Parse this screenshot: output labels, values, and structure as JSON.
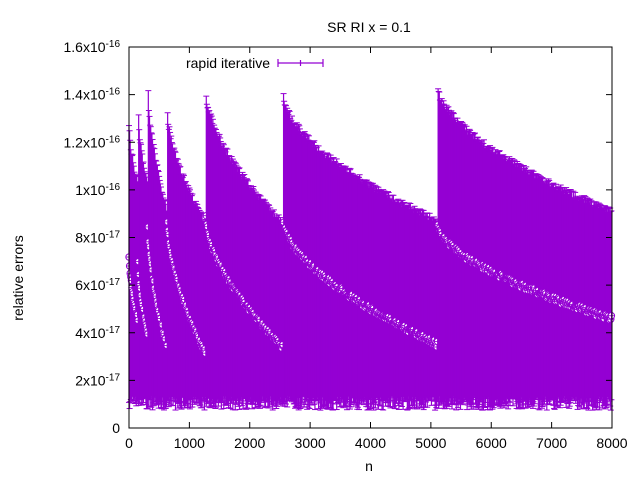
{
  "chart_data": {
    "type": "scatter",
    "title": "SR RI x = 0.1",
    "xlabel": "n",
    "ylabel": "relative errors",
    "xlim": [
      0,
      8000
    ],
    "ylim": [
      0,
      1.6e-16
    ],
    "grid": false,
    "legend_position": "top-left",
    "x_ticks": [
      {
        "value": 0,
        "label": "0"
      },
      {
        "value": 1000,
        "label": "1000"
      },
      {
        "value": 2000,
        "label": "2000"
      },
      {
        "value": 3000,
        "label": "3000"
      },
      {
        "value": 4000,
        "label": "4000"
      },
      {
        "value": 5000,
        "label": "5000"
      },
      {
        "value": 6000,
        "label": "6000"
      },
      {
        "value": 7000,
        "label": "7000"
      },
      {
        "value": 8000,
        "label": "8000"
      }
    ],
    "y_ticks": [
      {
        "value": 0,
        "mantissa": "0",
        "exponent": ""
      },
      {
        "value": 2e-17,
        "mantissa": "2x10",
        "exponent": "-17"
      },
      {
        "value": 4e-17,
        "mantissa": "4x10",
        "exponent": "-17"
      },
      {
        "value": 6e-17,
        "mantissa": "6x10",
        "exponent": "-17"
      },
      {
        "value": 8e-17,
        "mantissa": "8x10",
        "exponent": "-17"
      },
      {
        "value": 1e-16,
        "mantissa": "1x10",
        "exponent": "-16"
      },
      {
        "value": 1.2e-16,
        "mantissa": "1.2x10",
        "exponent": "-16"
      },
      {
        "value": 1.4e-16,
        "mantissa": "1.4x10",
        "exponent": "-16"
      },
      {
        "value": 1.6e-16,
        "mantissa": "1.6x10",
        "exponent": "-16"
      }
    ],
    "series": [
      {
        "name": "rapid iterative",
        "color": "#9400d3",
        "style": "points with error bars",
        "segments": [
          {
            "x_start": 0,
            "x_end": 160,
            "mean_start": 7.3e-17,
            "mean_end": 4.5e-17,
            "err_low_start": 1e-17,
            "err_high_start": 1.28e-16,
            "err_low_end": 1e-17,
            "err_high_end": 1e-16
          },
          {
            "x_start": 160,
            "x_end": 320,
            "mean_start": 7e-17,
            "mean_end": 3.8e-17,
            "err_low_start": 1e-17,
            "err_high_start": 1.3e-16,
            "err_low_end": 1e-17,
            "err_high_end": 1e-16
          },
          {
            "x_start": 320,
            "x_end": 640,
            "mean_start": 8.5e-17,
            "mean_end": 3.3e-17,
            "err_low_start": 1e-17,
            "err_high_start": 1.4e-16,
            "err_low_end": 1e-17,
            "err_high_end": 9e-17
          },
          {
            "x_start": 640,
            "x_end": 1280,
            "mean_start": 8.7e-17,
            "mean_end": 3.1e-17,
            "err_low_start": 1e-17,
            "err_high_start": 1.32e-16,
            "err_low_end": 1e-17,
            "err_high_end": 8.5e-17
          },
          {
            "x_start": 1280,
            "x_end": 2560,
            "mean_start": 8.8e-17,
            "mean_end": 3.4e-17,
            "err_low_start": 1e-17,
            "err_high_start": 1.4e-16,
            "err_low_end": 1e-17,
            "err_high_end": 8.5e-17
          },
          {
            "x_start": 2560,
            "x_end": 5120,
            "mean_start": 8.7e-17,
            "mean_end": 3.5e-17,
            "err_low_start": 1e-17,
            "err_high_start": 1.38e-16,
            "err_low_end": 1e-17,
            "err_high_end": 8.6e-17
          },
          {
            "x_start": 5120,
            "x_end": 8000,
            "mean_start": 8.5e-17,
            "mean_end": 4.6e-17,
            "err_low_start": 1e-17,
            "err_high_start": 1.42e-16,
            "err_low_end": 1e-17,
            "err_high_end": 9e-17
          }
        ]
      }
    ]
  }
}
